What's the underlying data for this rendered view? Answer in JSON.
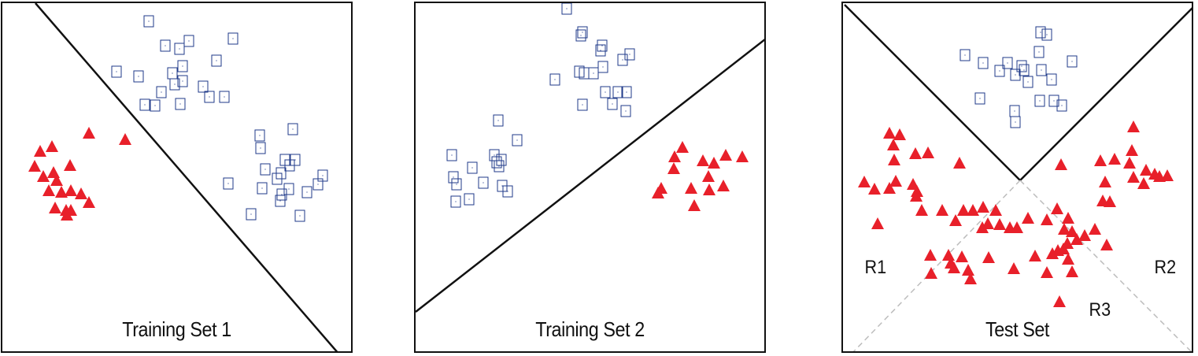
{
  "panels": [
    {
      "caption": "Training Set 1"
    },
    {
      "caption": "Training Set 2"
    },
    {
      "caption": "Test Set",
      "regions": [
        "R1",
        "R2",
        "R3"
      ]
    }
  ],
  "colors": {
    "triangle": "#e8202a",
    "square": "#1f3a8a",
    "line": "#111111",
    "dashed": "#bdbdbd"
  }
}
